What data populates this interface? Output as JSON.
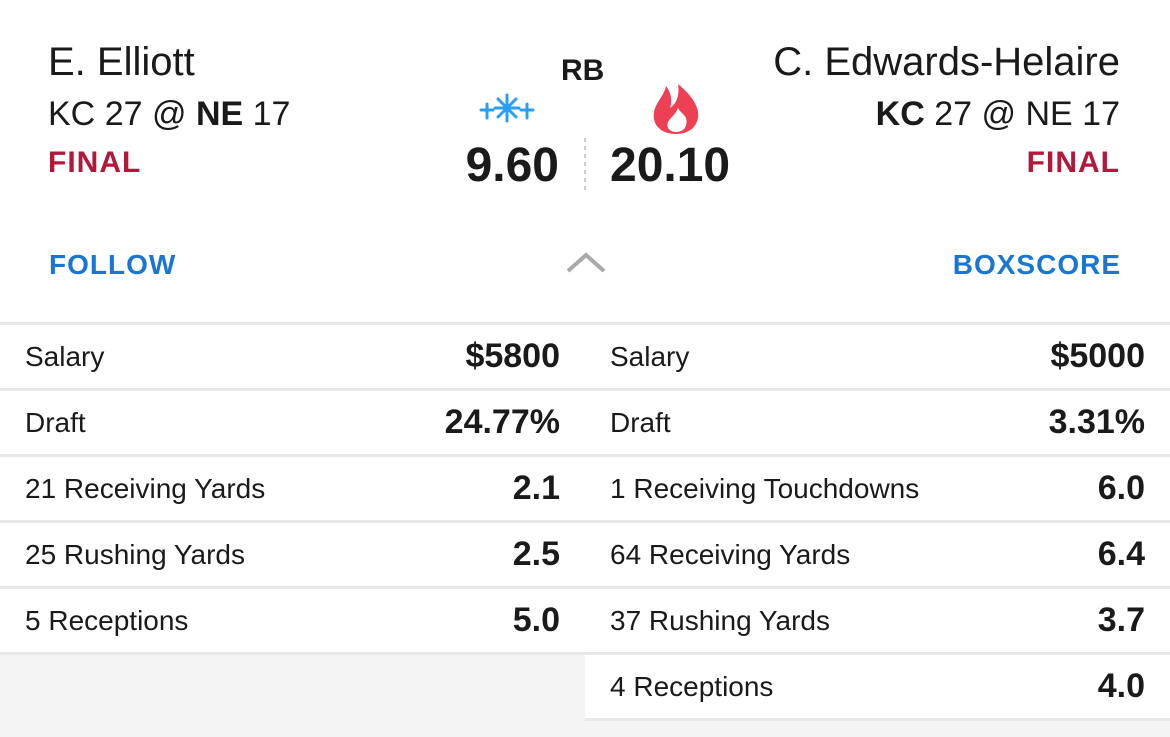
{
  "position": "RB",
  "players": [
    {
      "name": "E. Elliott",
      "game": {
        "away": "KC",
        "away_score": "27",
        "at": "@",
        "home": "NE",
        "home_score": "17"
      },
      "status": "FINAL",
      "score": "9.60",
      "action": "FOLLOW",
      "stats": [
        [
          "Salary",
          "$5800"
        ],
        [
          "Draft",
          "24.77%"
        ],
        [
          "21 Receiving Yards",
          "2.1"
        ],
        [
          "25 Rushing Yards",
          "2.5"
        ],
        [
          "5 Receptions",
          "5.0"
        ]
      ]
    },
    {
      "name": "C. Edwards-Helaire",
      "game": {
        "away": "KC",
        "away_score": "27",
        "at": "@",
        "home": "NE",
        "home_score": "17"
      },
      "status": "FINAL",
      "score": "20.10",
      "action": "BOXSCORE",
      "stats": [
        [
          "Salary",
          "$5000"
        ],
        [
          "Draft",
          "3.31%"
        ],
        [
          "1 Receiving Touchdowns",
          "6.0"
        ],
        [
          "64 Receiving Yards",
          "6.4"
        ],
        [
          "37 Rushing Yards",
          "3.7"
        ],
        [
          "4 Receptions",
          "4.0"
        ]
      ]
    }
  ]
}
